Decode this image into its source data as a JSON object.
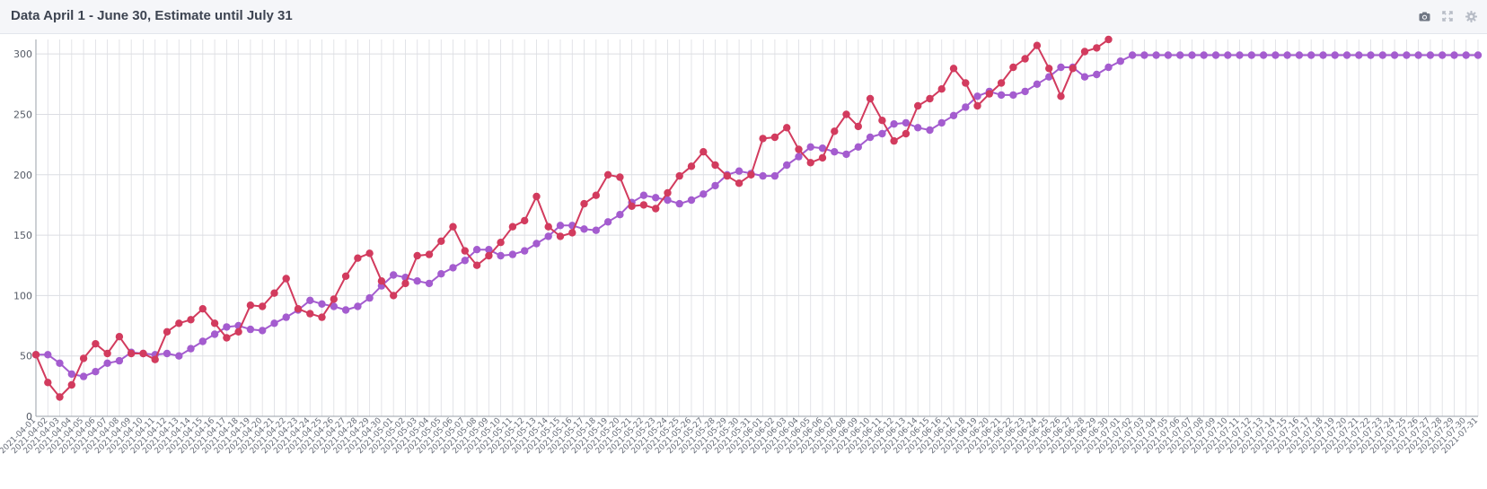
{
  "panel": {
    "title": "Data April 1 - June 30, Estimate until July 31"
  },
  "toolbar": {
    "icons": [
      "camera-icon",
      "expand-icon",
      "gear-icon"
    ]
  },
  "colors": {
    "actual": "#d23b5e",
    "estimate": "#a45ccf",
    "grid": "#dcdde2",
    "header_bg": "#f5f6f9"
  },
  "chart_data": {
    "type": "line",
    "title": "Data April 1 - June 30, Estimate until July 31",
    "xlabel": "",
    "ylabel": "",
    "ylim": [
      0,
      312
    ],
    "yticks": [
      0,
      50,
      100,
      150,
      200,
      250,
      300
    ],
    "grid": true,
    "x_start": "2021-04-01",
    "x_end": "2021-07-31",
    "series": [
      {
        "name": "",
        "color": "#d23b5e",
        "x_start": "2021-04-01",
        "values": [
          51,
          28,
          16,
          26,
          48,
          60,
          52,
          66,
          52,
          52,
          47,
          70,
          77,
          80,
          89,
          77,
          65,
          70,
          92,
          91,
          102,
          114,
          89,
          85,
          82,
          97,
          116,
          131,
          135,
          112,
          100,
          110,
          133,
          134,
          145,
          157,
          137,
          125,
          133,
          144,
          157,
          162,
          182,
          157,
          149,
          152,
          176,
          183,
          200,
          198,
          174,
          175,
          172,
          185,
          199,
          207,
          219,
          208,
          199,
          193,
          200,
          230,
          231,
          239,
          221,
          210,
          214,
          236,
          250,
          240,
          263,
          245,
          228,
          234,
          257,
          263,
          271,
          288,
          276,
          257,
          267,
          276,
          289,
          296,
          307,
          288,
          265,
          288,
          302,
          305,
          312
        ]
      },
      {
        "name": "",
        "color": "#a45ccf",
        "x_start": "2021-04-01",
        "values": [
          51,
          51,
          44,
          35,
          33,
          37,
          44,
          46,
          53,
          52,
          51,
          52,
          50,
          56,
          62,
          68,
          74,
          75,
          72,
          71,
          77,
          82,
          88,
          96,
          93,
          91,
          88,
          91,
          98,
          108,
          117,
          115,
          112,
          110,
          118,
          123,
          129,
          138,
          138,
          133,
          134,
          137,
          143,
          149,
          158,
          158,
          155,
          154,
          161,
          167,
          177,
          183,
          181,
          179,
          176,
          179,
          184,
          191,
          200,
          203,
          201,
          199,
          199,
          208,
          215,
          223,
          222,
          219,
          217,
          223,
          231,
          234,
          242,
          243,
          239,
          237,
          243,
          249,
          256,
          265,
          269,
          266,
          266,
          269,
          275,
          281,
          289,
          289,
          281,
          283,
          289,
          294,
          299,
          299,
          299,
          299,
          299,
          299,
          299,
          299,
          299,
          299,
          299,
          299,
          299,
          299,
          299,
          299,
          299,
          299,
          299,
          299,
          299,
          299,
          299,
          299,
          299,
          299,
          299,
          299,
          299,
          299
        ]
      }
    ]
  }
}
